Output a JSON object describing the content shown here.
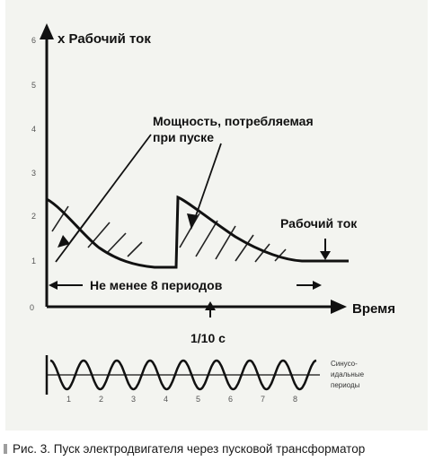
{
  "diagram": {
    "y_axis_label": "x Рабочий ток",
    "x_axis_label": "Время",
    "y_ticks": [
      "0",
      "1",
      "2",
      "3",
      "4",
      "5",
      "6"
    ],
    "power_label_line1": "Мощность, потребляемая",
    "power_label_line2": "при пуске",
    "working_current_label": "Рабочий ток",
    "periods_label": "Не менее 8 периодов",
    "time_mark_label": "1/10 с",
    "sine_label_line1": "Синусо-",
    "sine_label_line2": "идальные",
    "sine_label_line3": "периоды",
    "sine_period_numbers": [
      "1",
      "2",
      "3",
      "4",
      "5",
      "6",
      "7",
      "8"
    ]
  },
  "caption": "Рис. 3. Пуск электродвигателя через пусковой трансформатор"
}
